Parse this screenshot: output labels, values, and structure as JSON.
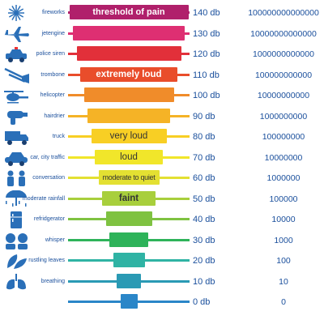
{
  "chart_data": {
    "type": "bar",
    "colors": [
      "#2a86c8",
      "#2a9ab4",
      "#2fb3a4",
      "#2eb35a",
      "#7fc241",
      "#a8cf3c",
      "#e3e032",
      "#f1e62a",
      "#f8cf24",
      "#f5b326",
      "#f08c2a",
      "#e94d2b",
      "#e2303a",
      "#de2f72",
      "#b0206b"
    ],
    "rows": [
      {
        "source": "",
        "db": "0 db",
        "intensity": "0",
        "label": "",
        "icon": "none-icon",
        "width": 1
      },
      {
        "source": "breathing",
        "db": "10 db",
        "intensity": "10",
        "label": "",
        "icon": "lungs-icon",
        "width": 2
      },
      {
        "source": "rustling leaves",
        "db": "20 db",
        "intensity": "100",
        "label": "",
        "icon": "leaves-icon",
        "width": 3
      },
      {
        "source": "whisper",
        "db": "30 db",
        "intensity": "1000",
        "label": "",
        "icon": "whisper-icon",
        "width": 4
      },
      {
        "source": "refridgerator",
        "db": "40 db",
        "intensity": "10000",
        "label": "",
        "icon": "fridge-icon",
        "width": 5
      },
      {
        "source": "moderate rainfall",
        "db": "50 db",
        "intensity": "100000",
        "label": "faint",
        "icon": "rain-icon",
        "width": 6
      },
      {
        "source": "conversation",
        "db": "60 db",
        "intensity": "1000000",
        "label": "moderate to quiet",
        "icon": "conversation-icon",
        "width": 7
      },
      {
        "source": "car, city traffic",
        "db": "70 db",
        "intensity": "10000000",
        "label": "loud",
        "icon": "car-icon",
        "width": 8
      },
      {
        "source": "truck",
        "db": "80 db",
        "intensity": "100000000",
        "label": "very loud",
        "icon": "truck-icon",
        "width": 9
      },
      {
        "source": "hairdrier",
        "db": "90 db",
        "intensity": "1000000000",
        "label": "",
        "icon": "hairdrier-icon",
        "width": 10
      },
      {
        "source": "helicopter",
        "db": "100 db",
        "intensity": "10000000000",
        "label": "",
        "icon": "helicopter-icon",
        "width": 11
      },
      {
        "source": "trombone",
        "db": "110 db",
        "intensity": "100000000000",
        "label": "extremely loud",
        "icon": "trombone-icon",
        "width": 12
      },
      {
        "source": "police siren",
        "db": "120 db",
        "intensity": "1000000000000",
        "label": "",
        "icon": "police-car-icon",
        "width": 13
      },
      {
        "source": "jetengine",
        "db": "130 db",
        "intensity": "10000000000000",
        "label": "",
        "icon": "jet-icon",
        "width": 14
      },
      {
        "source": "fireworks",
        "db": "140 db",
        "intensity": "100000000000000",
        "label": "threshold of pain",
        "icon": "fireworks-icon",
        "width": 15
      }
    ]
  }
}
